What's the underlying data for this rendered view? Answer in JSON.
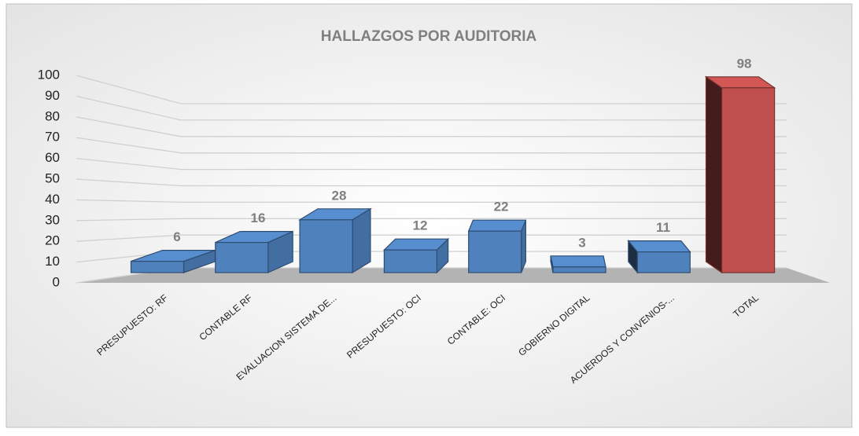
{
  "chart_data": {
    "type": "bar3d",
    "title": "HALLAZGOS POR AUDITORIA",
    "categories": [
      "PRESUPUESTO: RF",
      "CONTABLE RF",
      "EVALUACION SISTEMA DE...",
      "PRESUPUESTO: OCI",
      "CONTABLE: OCI",
      "GOBIERNO DIGITAL",
      "ACUERDOS Y CONVENIOS-...",
      "TOTAL"
    ],
    "values": [
      6,
      16,
      28,
      12,
      22,
      3,
      11,
      98
    ],
    "colors": [
      "#4f81bd",
      "#4f81bd",
      "#4f81bd",
      "#4f81bd",
      "#4f81bd",
      "#4f81bd",
      "#4f81bd",
      "#c0504d"
    ],
    "ylim": [
      0,
      100
    ],
    "yticks": [
      0,
      10,
      20,
      30,
      40,
      50,
      60,
      70,
      80,
      90,
      100
    ],
    "grid": true
  }
}
